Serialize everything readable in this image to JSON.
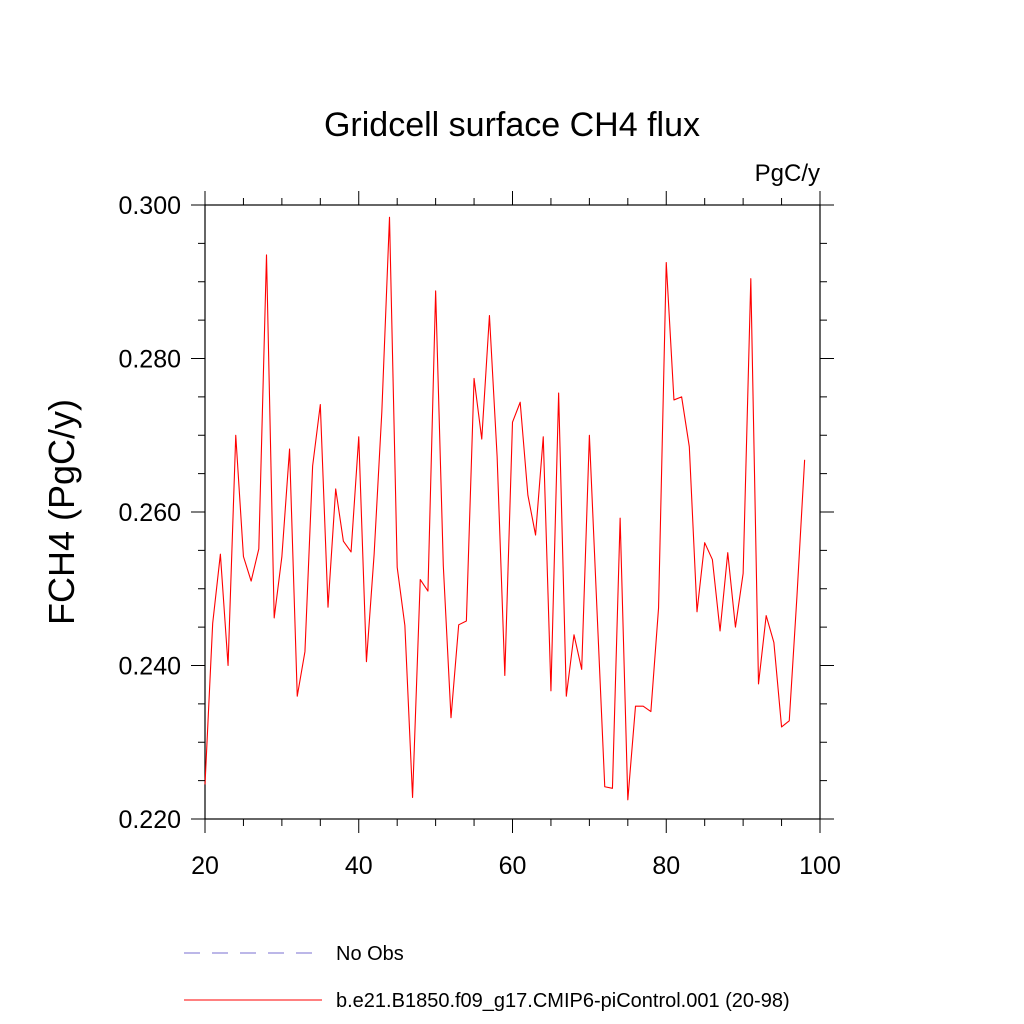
{
  "chart_data": {
    "type": "line",
    "title": "Gridcell surface CH4 flux",
    "units_label": "PgC/y",
    "ylabel": "FCH4  (PgC/y)",
    "xlabel": "",
    "xlim": [
      20,
      100
    ],
    "ylim": [
      0.22,
      0.3
    ],
    "x_ticks": [
      "20",
      "40",
      "60",
      "80",
      "100"
    ],
    "y_ticks": [
      "0.220",
      "0.240",
      "0.260",
      "0.280",
      "0.300"
    ],
    "x_tick_values": [
      20,
      40,
      60,
      80,
      100
    ],
    "y_tick_values": [
      0.22,
      0.24,
      0.26,
      0.28,
      0.3
    ],
    "grid": false,
    "legend_position": "bottom",
    "series": [
      {
        "name": "b.e21.B1850.f09_g17.CMIP6-piControl.001 (20-98)",
        "color": "#ff0000",
        "style": "solid",
        "x": [
          20,
          21,
          22,
          23,
          24,
          25,
          26,
          27,
          28,
          29,
          30,
          31,
          32,
          33,
          34,
          35,
          36,
          37,
          38,
          39,
          40,
          41,
          42,
          43,
          44,
          45,
          46,
          47,
          48,
          49,
          50,
          51,
          52,
          53,
          54,
          55,
          56,
          57,
          58,
          59,
          60,
          61,
          62,
          63,
          64,
          65,
          66,
          67,
          68,
          69,
          70,
          71,
          72,
          73,
          74,
          75,
          76,
          77,
          78,
          79,
          80,
          81,
          82,
          83,
          84,
          85,
          86,
          87,
          88,
          89,
          90,
          91,
          92,
          93,
          94,
          95,
          96,
          97,
          98
        ],
        "values": [
          0.2245,
          0.2455,
          0.2545,
          0.24,
          0.27,
          0.2542,
          0.251,
          0.2552,
          0.2935,
          0.2462,
          0.2542,
          0.2682,
          0.236,
          0.2418,
          0.266,
          0.274,
          0.2476,
          0.263,
          0.2562,
          0.2548,
          0.2698,
          0.2405,
          0.2545,
          0.273,
          0.2984,
          0.2528,
          0.2452,
          0.2228,
          0.2512,
          0.2497,
          0.2888,
          0.253,
          0.2332,
          0.2453,
          0.2458,
          0.2774,
          0.2695,
          0.2856,
          0.2672,
          0.2387,
          0.2717,
          0.2743,
          0.2622,
          0.257,
          0.2698,
          0.2367,
          0.2755,
          0.236,
          0.244,
          0.2395,
          0.27,
          0.247,
          0.2242,
          0.224,
          0.2592,
          0.2225,
          0.2347,
          0.2347,
          0.234,
          0.2475,
          0.2925,
          0.2746,
          0.275,
          0.2685,
          0.247,
          0.256,
          0.2538,
          0.2445,
          0.2547,
          0.245,
          0.252,
          0.2904,
          0.2376,
          0.2465,
          0.243,
          0.232,
          0.2328,
          0.249,
          0.2668
        ]
      },
      {
        "name": "No Obs",
        "color": "#7a6fd0",
        "style": "dashed",
        "x": [],
        "values": []
      }
    ]
  }
}
